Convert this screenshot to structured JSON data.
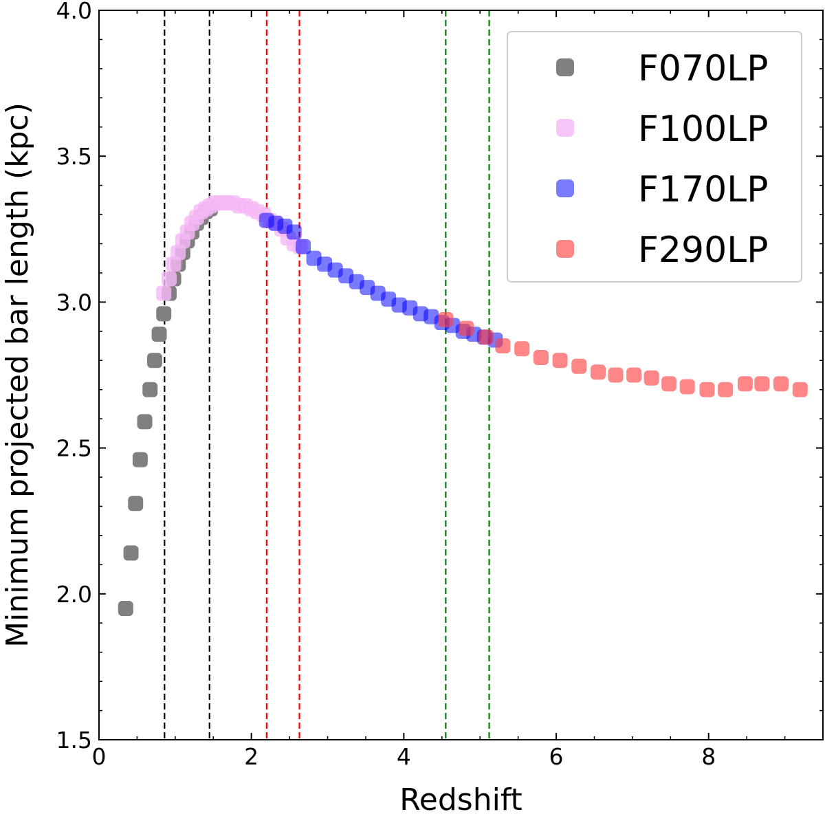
{
  "chart_data": {
    "type": "scatter",
    "title": "",
    "xlabel": "Redshift",
    "ylabel": "Minimum projected bar length (kpc)",
    "xlim": [
      0,
      9.5
    ],
    "ylim": [
      1.5,
      4.0
    ],
    "xticks": [
      0,
      2,
      4,
      6,
      8
    ],
    "xtick_labels": [
      "0",
      "2",
      "4",
      "6",
      "8"
    ],
    "yticks": [
      1.5,
      2.0,
      2.5,
      3.0,
      3.5,
      4.0
    ],
    "ytick_labels": [
      "1.5",
      "2.0",
      "2.5",
      "3.0",
      "3.5",
      "4.0"
    ],
    "grid": false,
    "legend_position": "top-right",
    "series": [
      {
        "name": "F070LP",
        "color": "#808080",
        "opacity": 1.0,
        "x": [
          0.35,
          0.42,
          0.48,
          0.54,
          0.6,
          0.67,
          0.73,
          0.79,
          0.85,
          0.92,
          0.98,
          1.04,
          1.1,
          1.16,
          1.22,
          1.28,
          1.34,
          1.4,
          1.46
        ],
        "y": [
          1.95,
          2.14,
          2.31,
          2.46,
          2.59,
          2.7,
          2.8,
          2.89,
          2.96,
          3.03,
          3.08,
          3.13,
          3.17,
          3.21,
          3.24,
          3.27,
          3.29,
          3.31,
          3.32
        ]
      },
      {
        "name": "F100LP",
        "color": "#f5b8f5",
        "opacity": 0.82,
        "x": [
          0.85,
          0.92,
          0.98,
          1.04,
          1.1,
          1.16,
          1.22,
          1.28,
          1.34,
          1.4,
          1.46,
          1.52,
          1.6,
          1.68,
          1.76,
          1.84,
          1.92,
          2.0,
          2.08,
          2.16,
          2.24,
          2.32,
          2.4,
          2.48,
          2.56,
          2.64
        ],
        "y": [
          3.03,
          3.08,
          3.13,
          3.17,
          3.21,
          3.24,
          3.27,
          3.29,
          3.31,
          3.32,
          3.33,
          3.34,
          3.34,
          3.34,
          3.34,
          3.33,
          3.33,
          3.32,
          3.31,
          3.3,
          3.28,
          3.27,
          3.25,
          3.22,
          3.2,
          3.19
        ]
      },
      {
        "name": "F170LP",
        "color": "#0000ff",
        "opacity": 0.52,
        "x": [
          2.2,
          2.32,
          2.44,
          2.56,
          2.68,
          2.82,
          2.96,
          3.1,
          3.24,
          3.38,
          3.52,
          3.66,
          3.8,
          3.94,
          4.08,
          4.22,
          4.36,
          4.5,
          4.64,
          4.78,
          4.92,
          5.06,
          5.2
        ],
        "y": [
          3.28,
          3.27,
          3.26,
          3.24,
          3.19,
          3.15,
          3.13,
          3.11,
          3.09,
          3.07,
          3.05,
          3.03,
          3.01,
          2.99,
          2.98,
          2.96,
          2.95,
          2.93,
          2.92,
          2.9,
          2.89,
          2.88,
          2.87
        ]
      },
      {
        "name": "F290LP",
        "color": "#ff3b3b",
        "opacity": 0.62,
        "x": [
          4.55,
          4.82,
          5.08,
          5.3,
          5.55,
          5.8,
          6.05,
          6.3,
          6.55,
          6.78,
          7.02,
          7.25,
          7.48,
          7.72,
          7.98,
          8.22,
          8.48,
          8.7,
          8.95,
          9.2
        ],
        "y": [
          2.94,
          2.91,
          2.88,
          2.85,
          2.84,
          2.81,
          2.8,
          2.78,
          2.76,
          2.75,
          2.75,
          2.74,
          2.72,
          2.71,
          2.7,
          2.7,
          2.72,
          2.72,
          2.72,
          2.7
        ]
      }
    ],
    "vertical_lines": [
      {
        "x": 0.86,
        "color": "#000000",
        "style": "dashed"
      },
      {
        "x": 1.45,
        "color": "#000000",
        "style": "dashed"
      },
      {
        "x": 2.2,
        "color": "#ff0000",
        "style": "dashed"
      },
      {
        "x": 2.63,
        "color": "#ff0000",
        "style": "dashed"
      },
      {
        "x": 4.55,
        "color": "#008000",
        "style": "dashed"
      },
      {
        "x": 5.12,
        "color": "#008000",
        "style": "dashed"
      }
    ]
  }
}
